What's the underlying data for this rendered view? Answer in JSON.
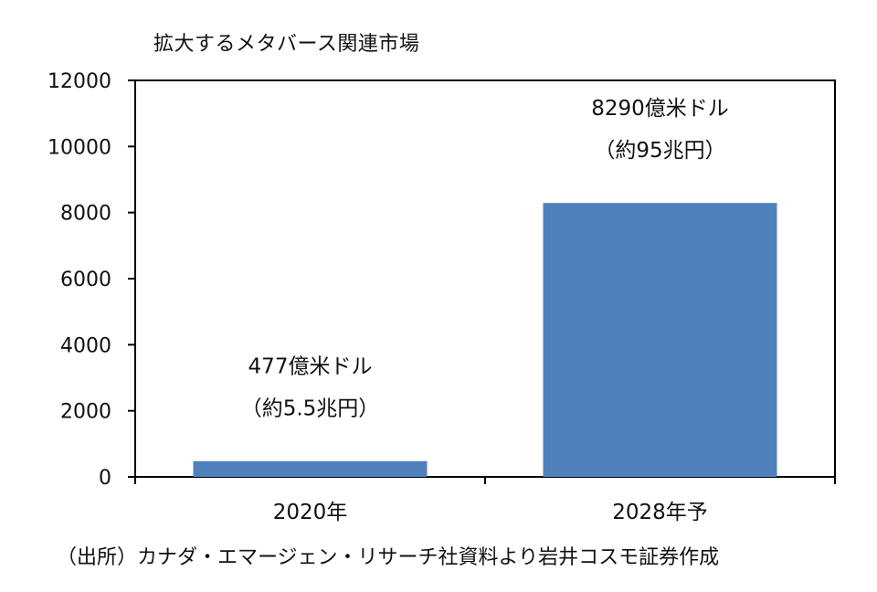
{
  "chart_data": {
    "type": "bar",
    "title": "拡大するメタバース関連市場",
    "categories": [
      "2020年",
      "2028年予"
    ],
    "values": [
      477,
      8290
    ],
    "ylim": [
      0,
      12000
    ],
    "yticks": [
      0,
      2000,
      4000,
      6000,
      8000,
      10000,
      12000
    ],
    "data_labels": [
      [
        "477億米ドル",
        "（約5.5兆円）"
      ],
      [
        "8290億米ドル",
        "（約95兆円）"
      ]
    ],
    "bar_color": "#4f81bd",
    "grid": false,
    "legend": "none",
    "source": "（出所）カナダ・エマージェン・リサーチ社資料より岩井コスモ証券作成"
  }
}
